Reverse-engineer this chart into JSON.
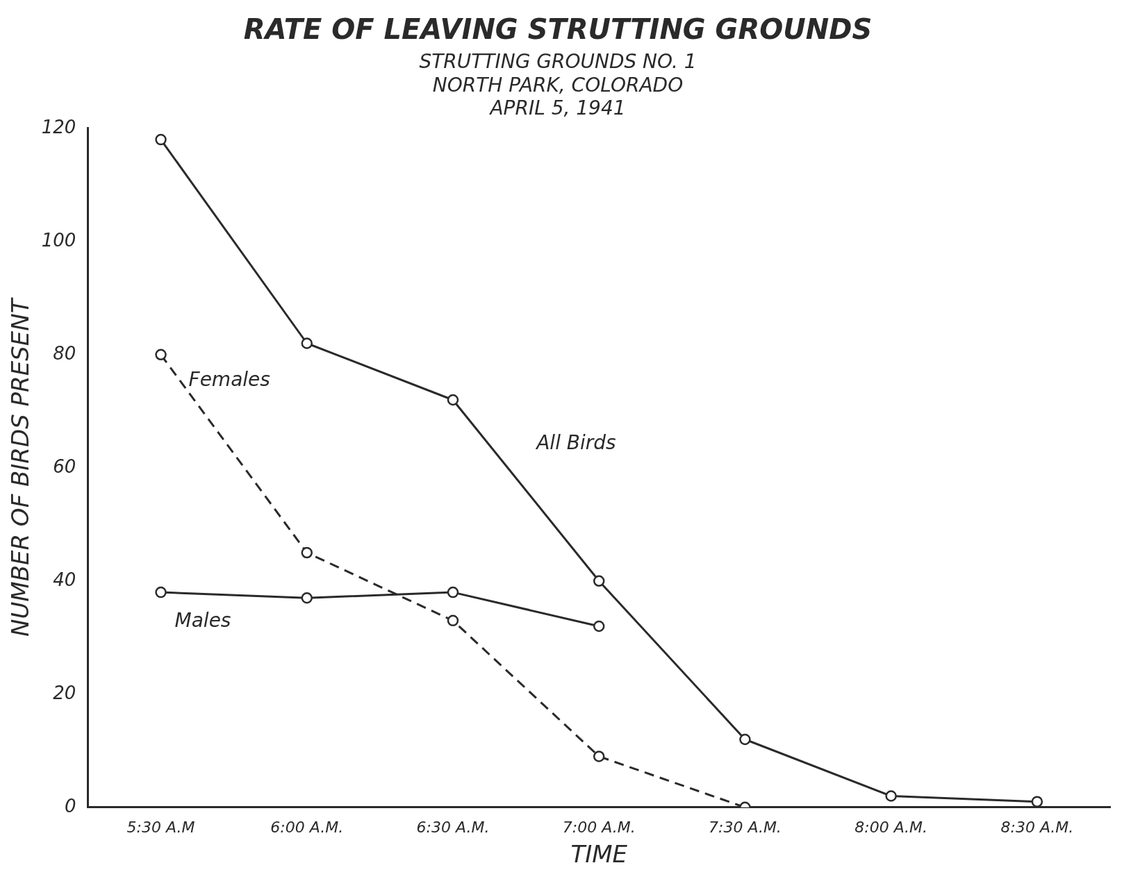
{
  "chart_data": {
    "type": "line",
    "title": "RATE OF LEAVING STRUTTING GROUNDS",
    "subtitle": "STRUTTING GROUNDS NO. 1\nNORTH PARK, COLORADO\nAPRIL 5, 1941",
    "xlabel": "TIME",
    "ylabel": "NUMBER OF BIRDS PRESENT",
    "categories": [
      "5:30 A.M",
      "6:00 A.M.",
      "6:30 A.M.",
      "7:00 A.M.",
      "7:30 A.M.",
      "8:00 A.M.",
      "8:30 A.M."
    ],
    "series": [
      {
        "name": "All Birds",
        "color": "#2a2a2a",
        "values": [
          118,
          82,
          72,
          40,
          12,
          2,
          1
        ],
        "line_style": "solid"
      },
      {
        "name": "Females",
        "color": "#2a2a2a",
        "values": [
          80,
          45,
          33,
          9,
          0,
          null,
          null
        ],
        "line_style": "dashed"
      },
      {
        "name": "Males",
        "color": "#2a2a2a",
        "values": [
          38,
          37,
          38,
          32,
          null,
          null,
          null
        ],
        "line_style": "solid"
      }
    ],
    "ylim": [
      0,
      120
    ],
    "yticks": [
      0,
      20,
      40,
      60,
      80,
      100,
      120
    ],
    "grid": false,
    "legend": false,
    "marker": "circle"
  }
}
